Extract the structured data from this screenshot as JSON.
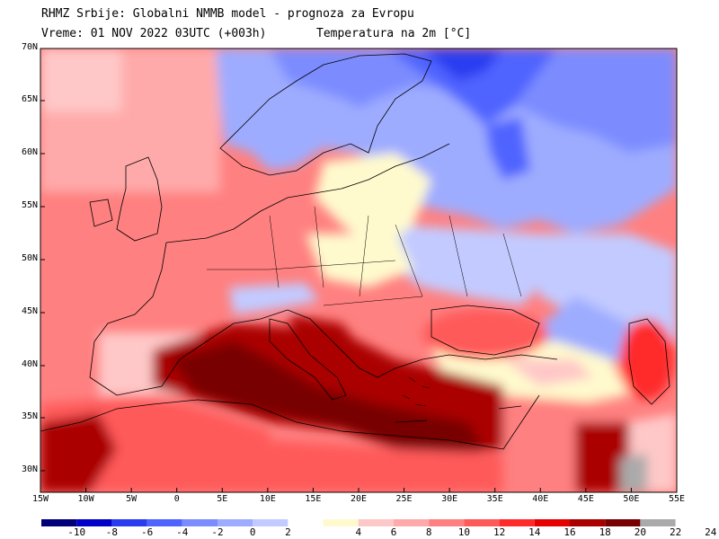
{
  "header": {
    "line1": "RHMZ Srbije: Globalni NMMB model - prognoza za Evropu",
    "line2_left": "Vreme: 01 NOV 2022 03UTC (+003h)",
    "line2_right": "Temperatura na 2m [°C]"
  },
  "map": {
    "lat_labels": [
      "70N",
      "65N",
      "60N",
      "55N",
      "50N",
      "45N",
      "40N",
      "35N",
      "30N"
    ],
    "lon_labels": [
      "15W",
      "10W",
      "5W",
      "0",
      "5E",
      "10E",
      "15E",
      "20E",
      "25E",
      "30E",
      "35E",
      "40E",
      "45E",
      "50E",
      "55E"
    ],
    "field_variable": "temperature-2m"
  },
  "legend": {
    "tick_labels": [
      "-10",
      "-8",
      "-6",
      "-4",
      "-2",
      "0",
      "2",
      "4",
      "6",
      "8",
      "10",
      "12",
      "14",
      "16",
      "18",
      "20",
      "22",
      "24"
    ],
    "colors": [
      "#00007a",
      "#0000c8",
      "#2a3cf0",
      "#4f64ff",
      "#7b8cff",
      "#9eacff",
      "#c2caff",
      "#ffffff",
      "#fffacd",
      "#ffc8c8",
      "#ffaaaa",
      "#ff8080",
      "#ff5a5a",
      "#ff2a2a",
      "#e60000",
      "#aa0000",
      "#780000",
      "#aaaaaa"
    ]
  }
}
